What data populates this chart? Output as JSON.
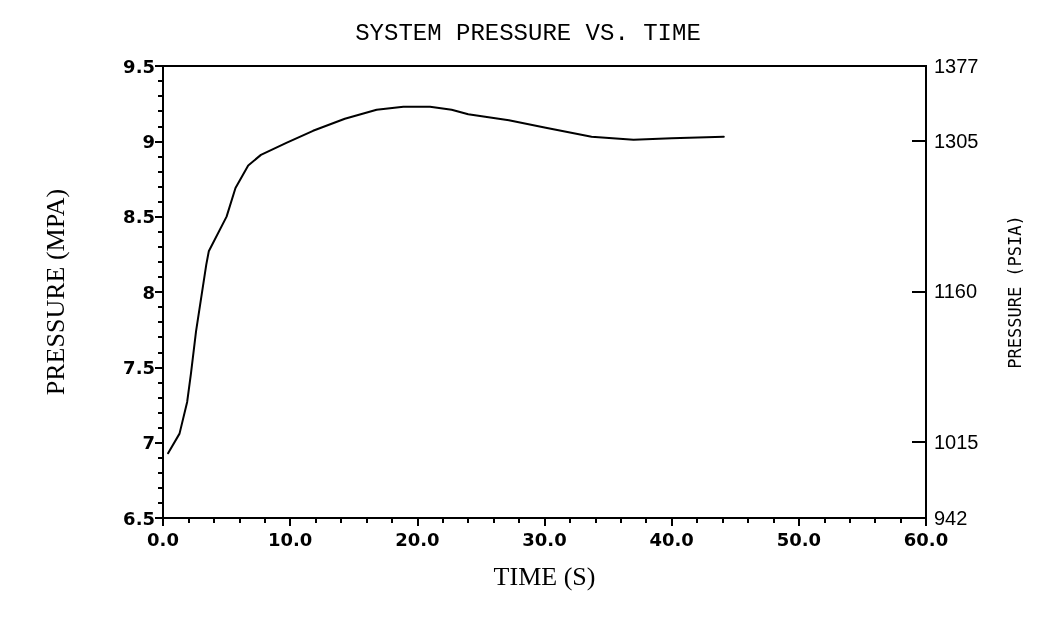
{
  "chart_data": {
    "type": "line",
    "title": "SYSTEM PRESSURE VS. TIME",
    "xlabel": "TIME (S)",
    "ylabel": "PRESSURE (MPA)",
    "y2label": "PRESSURE (PSIA)",
    "series": [
      {
        "color": "#000000",
        "x": [
          0.4,
          1.3,
          1.9,
          2.2,
          2.6,
          3.4,
          3.6,
          5.0,
          5.7,
          6.7,
          7.7,
          9.7,
          11.8,
          14.3,
          16.8,
          18.9,
          21.0,
          22.7,
          24.0,
          27.2,
          30.1,
          33.7,
          37.0,
          40.0,
          44.1
        ],
        "values": [
          6.93,
          7.06,
          7.27,
          7.46,
          7.74,
          8.18,
          8.27,
          8.5,
          8.69,
          8.84,
          8.91,
          8.99,
          9.07,
          9.15,
          9.21,
          9.23,
          9.23,
          9.21,
          9.18,
          9.14,
          9.09,
          9.03,
          9.01,
          9.02,
          9.03
        ]
      }
    ],
    "xlim": [
      0,
      60
    ],
    "xticks": [
      {
        "value": 0,
        "label": "0.0"
      },
      {
        "value": 10,
        "label": "10.0"
      },
      {
        "value": 20,
        "label": "20.0"
      },
      {
        "value": 30,
        "label": "30.0"
      },
      {
        "value": 40,
        "label": "40.0"
      },
      {
        "value": 50,
        "label": "50.0"
      },
      {
        "value": 60,
        "label": "60.0"
      }
    ],
    "ylim": [
      6.5,
      9.5
    ],
    "yticks": [
      6.5,
      7,
      7.5,
      8,
      8.5,
      9,
      9.5
    ],
    "y2lim": [
      942,
      1377
    ],
    "y2ticks": [
      942,
      1015,
      1160,
      1305,
      1377
    ],
    "grid": false,
    "marker": "none",
    "line_style": "solid"
  }
}
